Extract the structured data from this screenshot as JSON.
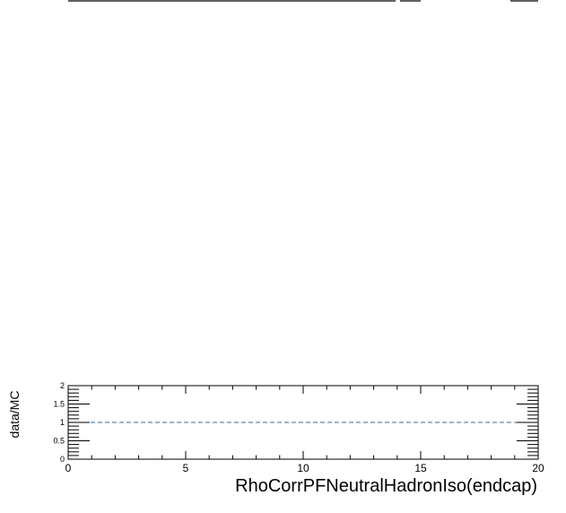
{
  "chart_data": {
    "type": "line",
    "title": "",
    "xlabel": "RhoCorrPFNeutralHadronIso(endcap)",
    "ylabel": "data/MC",
    "xlim": [
      0,
      20
    ],
    "ylim": [
      0,
      2
    ],
    "x_ticks": [
      "0",
      "5",
      "10",
      "15",
      "20"
    ],
    "y_ticks": [
      "0",
      "0.5",
      "1",
      "1.5",
      "2"
    ],
    "reference_line": {
      "y": 1,
      "style": "dashed",
      "color": "#336e9a"
    },
    "series": [],
    "grid": false,
    "colors": {
      "axis": "#000000",
      "reference": "#336e9a"
    }
  }
}
